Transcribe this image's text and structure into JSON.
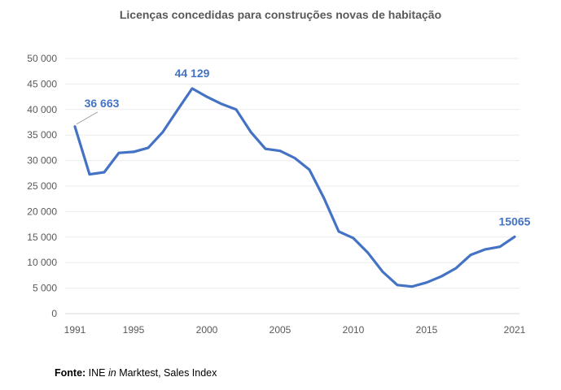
{
  "chart_data": {
    "type": "line",
    "title": "Licenças concedidas para construções novas de habitação",
    "xlabel": "",
    "ylabel": "",
    "ylim": [
      0,
      50000
    ],
    "xlim": [
      1991,
      2021
    ],
    "y_ticks": [
      "0",
      "5 000",
      "10 000",
      "15 000",
      "20 000",
      "25 000",
      "30 000",
      "35 000",
      "40 000",
      "45 000",
      "50 000"
    ],
    "x_ticks": [
      "1991",
      "1995",
      "2000",
      "2005",
      "2010",
      "2015",
      "2021"
    ],
    "series": [
      {
        "name": "Licenças",
        "color": "#4472C4",
        "x": [
          1991,
          1992,
          1993,
          1994,
          1995,
          1996,
          1997,
          1998,
          1999,
          2000,
          2001,
          2002,
          2003,
          2004,
          2005,
          2006,
          2007,
          2008,
          2009,
          2010,
          2011,
          2012,
          2013,
          2014,
          2015,
          2016,
          2017,
          2018,
          2019,
          2020,
          2021
        ],
        "values": [
          36663,
          27300,
          27700,
          31500,
          31700,
          32500,
          35600,
          39900,
          44129,
          42500,
          41100,
          40000,
          35600,
          32300,
          31900,
          30500,
          28200,
          22600,
          16100,
          14800,
          11900,
          8200,
          5600,
          5300,
          6100,
          7300,
          8900,
          11500,
          12600,
          13100,
          15065
        ]
      }
    ],
    "annotations": [
      {
        "text": "36 663",
        "x": 1991,
        "value": 36663
      },
      {
        "text": "44 129",
        "x": 1999,
        "value": 44129
      },
      {
        "text": "15065",
        "x": 2021,
        "value": 15065
      }
    ],
    "grid": true,
    "legend": "none"
  },
  "source": {
    "label": "Fonte:",
    "text_before": " INE ",
    "italic": "in",
    "text_after": " Marktest, Sales Index"
  }
}
